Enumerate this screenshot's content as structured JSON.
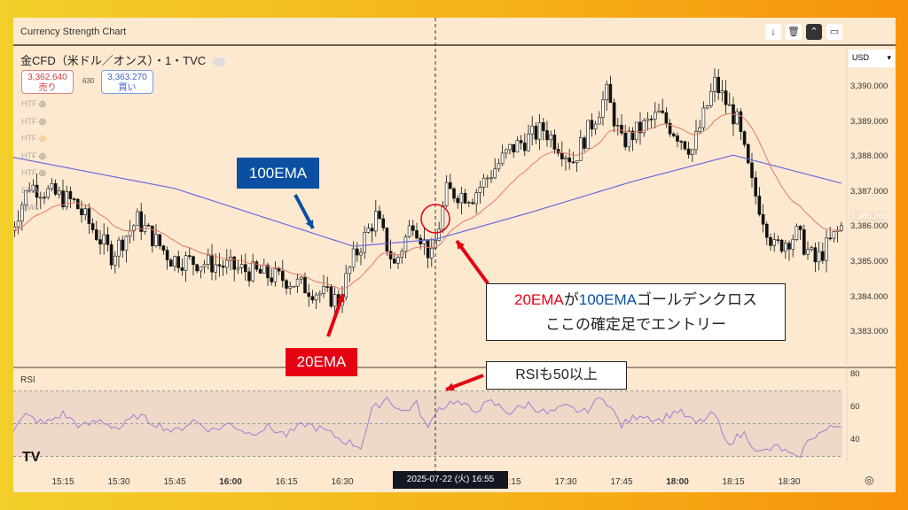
{
  "window": {
    "title": "Currency Strength Chart",
    "toolbar": [
      {
        "icon": "arrow-down-icon",
        "glyph": "↓"
      },
      {
        "icon": "trash-icon",
        "glyph": "🗑"
      },
      {
        "icon": "updown-icon",
        "glyph": "⌃"
      },
      {
        "icon": "fullscreen-icon",
        "glyph": "▭"
      }
    ]
  },
  "symbol": {
    "name": "金CFD（米ドル／オンス）・1・TVC"
  },
  "quote": {
    "sell_price": "3,362.640",
    "sell_label": "売り",
    "spread": "630",
    "buy_price": "3,363.270",
    "buy_label": "買い"
  },
  "indicators": [
    "HTF",
    "HTF",
    "HTF",
    "HTF",
    "HTF",
    "EMA",
    "EMA"
  ],
  "currency": "USD",
  "price_axis": [
    "3,390.000",
    "3,389.000",
    "3,388.000",
    "3,387.000",
    "3,386.000",
    "3,385.000",
    "3,384.000",
    "3,383.000"
  ],
  "last_price": "3,386.300",
  "rsi": {
    "label": "RSI",
    "axis": [
      "80",
      "60",
      "40"
    ],
    "levels": [
      70,
      50,
      30
    ],
    "path": [
      [
        "15:01",
        45
      ],
      [
        "15:05",
        55
      ],
      [
        "15:10",
        50
      ],
      [
        "15:15",
        56
      ],
      [
        "15:20",
        48
      ],
      [
        "15:25",
        52
      ],
      [
        "15:30",
        47
      ],
      [
        "15:35",
        55
      ],
      [
        "15:40",
        50
      ],
      [
        "15:45",
        45
      ],
      [
        "15:50",
        52
      ],
      [
        "15:55",
        46
      ],
      [
        "16:00",
        50
      ],
      [
        "16:05",
        44
      ],
      [
        "16:10",
        48
      ],
      [
        "16:15",
        43
      ],
      [
        "16:20",
        50
      ],
      [
        "16:25",
        46
      ],
      [
        "16:30",
        40
      ],
      [
        "16:35",
        36
      ],
      [
        "16:38",
        58
      ],
      [
        "16:42",
        66
      ],
      [
        "16:46",
        57
      ],
      [
        "16:50",
        62
      ],
      [
        "16:53",
        46
      ],
      [
        "16:55",
        58
      ],
      [
        "17:00",
        64
      ],
      [
        "17:05",
        58
      ],
      [
        "17:10",
        63
      ],
      [
        "17:15",
        57
      ],
      [
        "17:20",
        62
      ],
      [
        "17:25",
        56
      ],
      [
        "17:30",
        60
      ],
      [
        "17:35",
        57
      ],
      [
        "17:40",
        67
      ],
      [
        "17:45",
        49
      ],
      [
        "17:50",
        56
      ],
      [
        "17:55",
        52
      ],
      [
        "18:00",
        58
      ],
      [
        "18:05",
        50
      ],
      [
        "18:10",
        56
      ],
      [
        "18:13",
        38
      ],
      [
        "18:18",
        44
      ],
      [
        "18:22",
        32
      ],
      [
        "18:27",
        36
      ],
      [
        "18:32",
        28
      ],
      [
        "18:36",
        42
      ],
      [
        "18:40",
        46
      ],
      [
        "18:44",
        50
      ]
    ]
  },
  "time_axis": [
    {
      "label": "15:15",
      "t": "15:15",
      "bold": false
    },
    {
      "label": "15:30",
      "t": "15:30",
      "bold": false
    },
    {
      "label": "15:45",
      "t": "15:45",
      "bold": false
    },
    {
      "label": "16:00",
      "t": "16:00",
      "bold": true
    },
    {
      "label": "16:15",
      "t": "16:15",
      "bold": false
    },
    {
      "label": "16:30",
      "t": "16:30",
      "bold": false
    },
    {
      "label": "17:15",
      "t": "17:15",
      "bold": false
    },
    {
      "label": "17:30",
      "t": "17:30",
      "bold": false
    },
    {
      "label": "17:45",
      "t": "17:45",
      "bold": false
    },
    {
      "label": "18:00",
      "t": "18:00",
      "bold": true
    },
    {
      "label": "18:15",
      "t": "18:15",
      "bold": false
    },
    {
      "label": "18:30",
      "t": "18:30",
      "bold": false
    }
  ],
  "crosshair": {
    "label": "2025-07-22 (火)   16:55",
    "time": "16:55"
  },
  "price_path": [
    [
      "15:01",
      3385.9
    ],
    [
      "15:06",
      3387.2
    ],
    [
      "15:18",
      3386.7
    ],
    [
      "15:28",
      3385.2
    ],
    [
      "15:35",
      3386.2
    ],
    [
      "15:44",
      3385.1
    ],
    [
      "15:58",
      3384.9
    ],
    [
      "16:15",
      3384.5
    ],
    [
      "16:29",
      3383.9
    ],
    [
      "16:33",
      3385.1
    ],
    [
      "16:39",
      3386.3
    ],
    [
      "16:44",
      3384.9
    ],
    [
      "16:49",
      3386.2
    ],
    [
      "16:54",
      3385.1
    ],
    [
      "16:58",
      3387.0
    ],
    [
      "17:05",
      3386.9
    ],
    [
      "17:15",
      3388.2
    ],
    [
      "17:24",
      3388.8
    ],
    [
      "17:32",
      3387.9
    ],
    [
      "17:41",
      3389.8
    ],
    [
      "17:45",
      3388.4
    ],
    [
      "17:55",
      3389.2
    ],
    [
      "18:04",
      3388.2
    ],
    [
      "18:10",
      3390.1
    ],
    [
      "18:16",
      3389.0
    ],
    [
      "18:20",
      3387.2
    ],
    [
      "18:26",
      3385.4
    ],
    [
      "18:32",
      3385.8
    ],
    [
      "18:37",
      3385.0
    ],
    [
      "18:44",
      3386.0
    ]
  ],
  "ema100_path": [
    [
      "15:01",
      3388.0
    ],
    [
      "15:45",
      3387.1
    ],
    [
      "16:33",
      3385.45
    ],
    [
      "16:55",
      3385.65
    ],
    [
      "17:20",
      3386.4
    ],
    [
      "17:48",
      3387.3
    ],
    [
      "18:15",
      3388.05
    ],
    [
      "18:44",
      3387.25
    ]
  ],
  "colors": {
    "ema20": "#e07a6a",
    "ema100": "#6b6bdc",
    "rsi": "#9b7fd6",
    "up": "#ffffff",
    "down": "#111111",
    "annotation_blue": "#0b4fa3",
    "annotation_red": "#e50012"
  },
  "annotations": {
    "ema100": "100EMA",
    "ema20": "20EMA",
    "cross_line1_a": "20EMA",
    "cross_line1_b": "が",
    "cross_line1_c": "100EMA",
    "cross_line1_d": "ゴールデンクロス",
    "cross_line2": "ここの確定足でエントリー",
    "rsi_note": "RSIも50以上"
  }
}
